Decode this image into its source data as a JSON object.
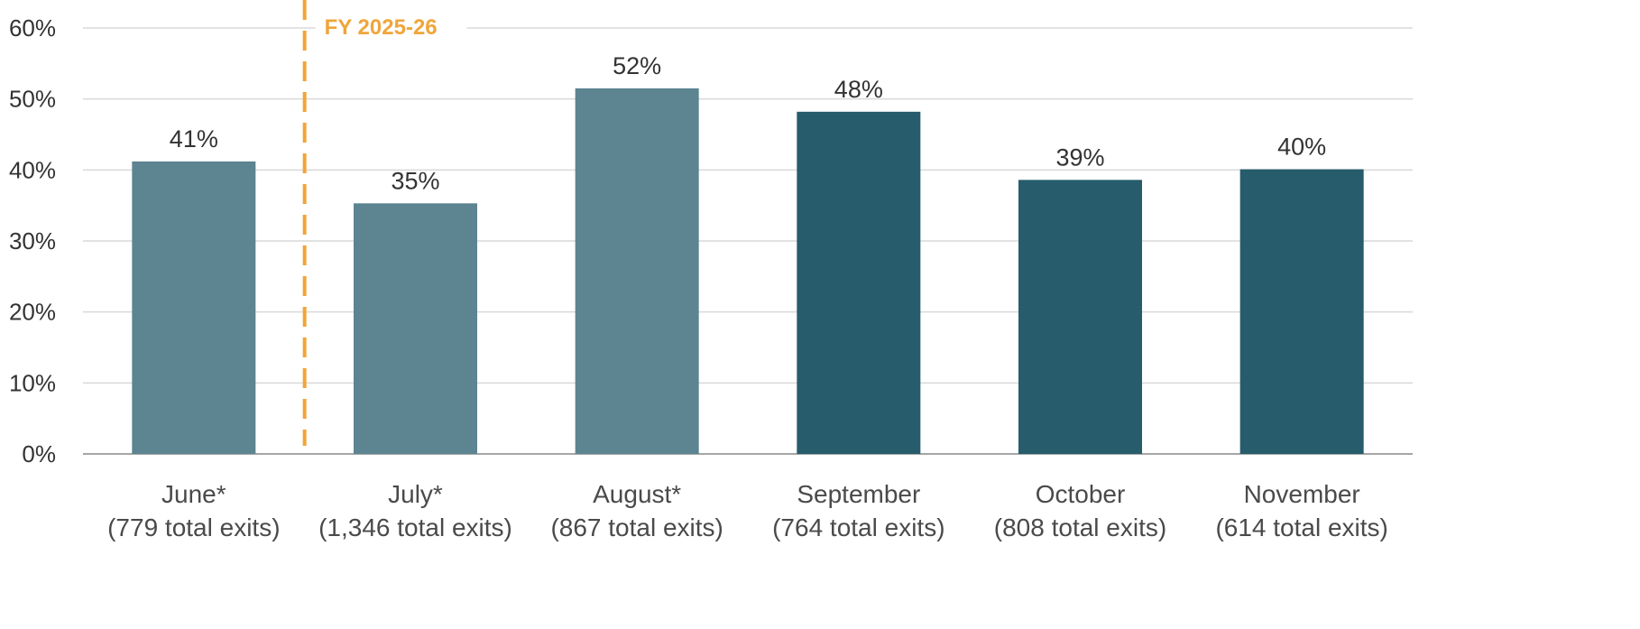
{
  "chart_data": {
    "type": "bar",
    "categories": [
      "June*",
      "July*",
      "August*",
      "September",
      "October",
      "November"
    ],
    "category_subtitles": [
      "(779 total exits)",
      "(1,346 total exits)",
      "(867 total exits)",
      "(764 total exits)",
      "(808 total exits)",
      "(614 total exits)"
    ],
    "values": [
      41.2,
      35.3,
      51.5,
      48.2,
      38.6,
      40.1
    ],
    "data_labels": [
      "41%",
      "35%",
      "52%",
      "48%",
      "39%",
      "40%"
    ],
    "bar_colors": [
      "#5c8491",
      "#5c8491",
      "#5c8491",
      "#265c6b",
      "#265c6b",
      "#265c6b"
    ],
    "y_ticks": [
      0,
      10,
      20,
      30,
      40,
      50,
      60
    ],
    "y_tick_labels": [
      "0%",
      "10%",
      "20%",
      "30%",
      "40%",
      "50%",
      "60%"
    ],
    "ylim": [
      0,
      60
    ],
    "grid": true,
    "title": "",
    "xlabel": "",
    "ylabel": "",
    "annotation": {
      "text": "FY 2025-26",
      "style": "dashed vertical line",
      "position_between": [
        "June*",
        "July*"
      ],
      "color": "#f0a53a"
    },
    "colors": {
      "gridline": "#d9d9d9",
      "axis": "#a6a6a6",
      "label_text": "#333333"
    }
  }
}
